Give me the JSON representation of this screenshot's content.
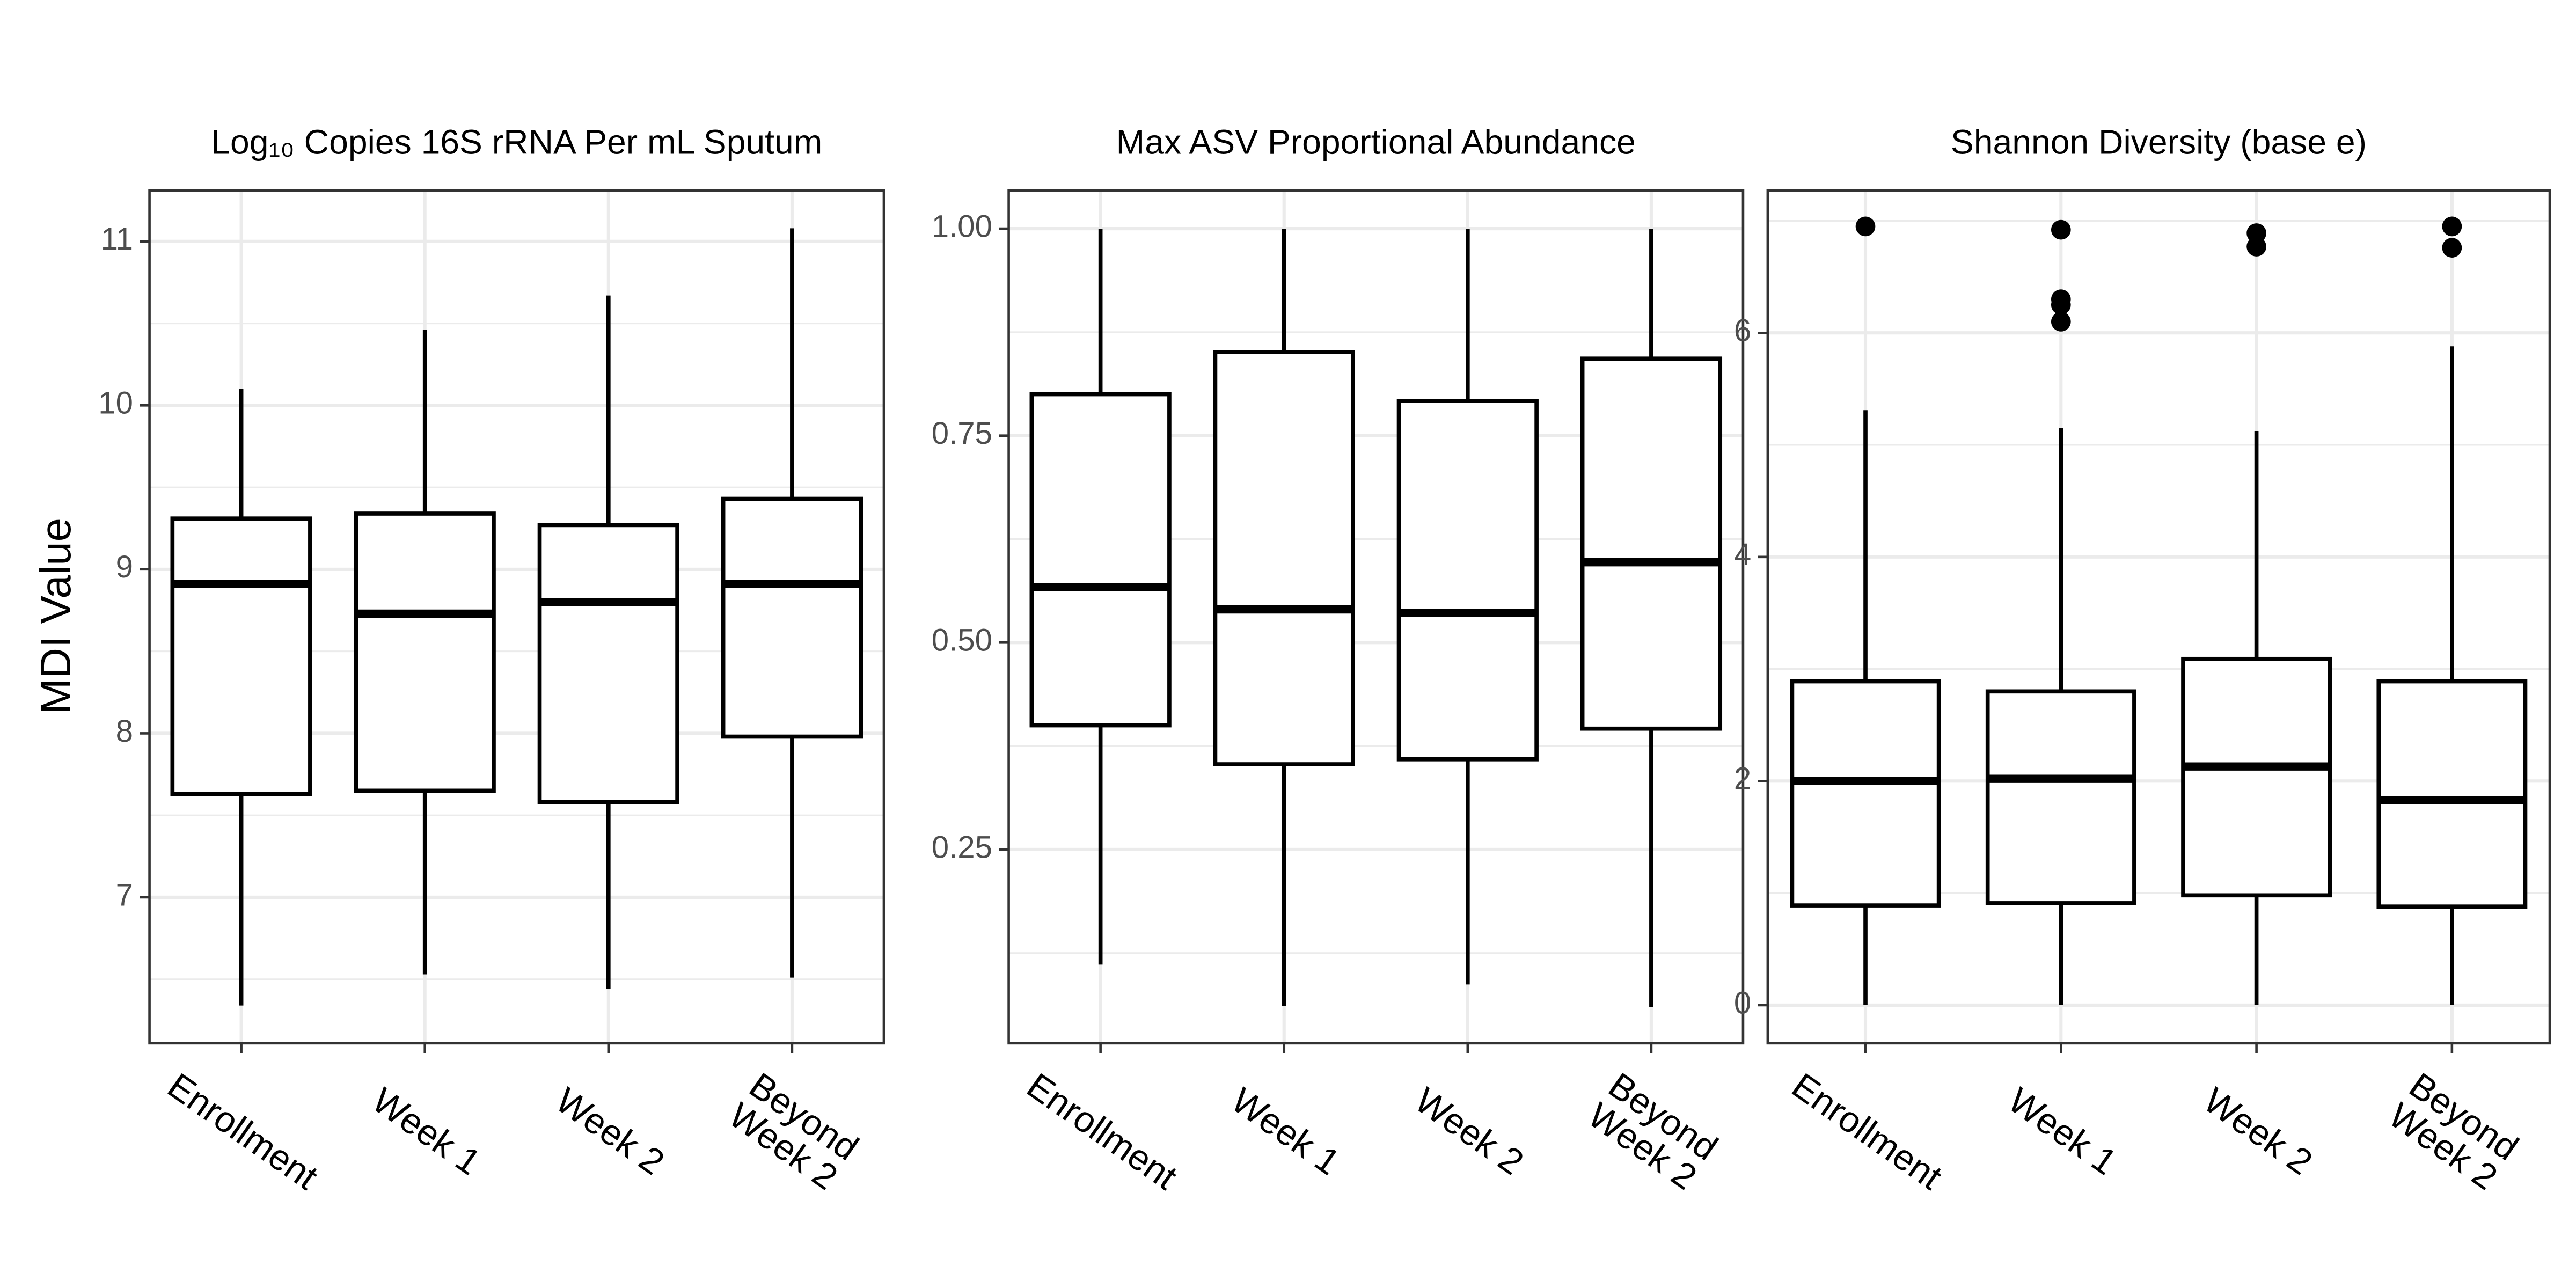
{
  "y_label": "MDI Value",
  "chart_data": [
    {
      "type": "box",
      "title": "Log₁₀ Copies 16S rRNA Per mL Sputum",
      "categories": [
        "Enrollment",
        "Week 1",
        "Week 2",
        "Beyond\nWeek 2"
      ],
      "ylim": [
        6.11,
        11.31
      ],
      "yticks": [
        7,
        8,
        9,
        10,
        11
      ],
      "grid": true,
      "boxes": [
        {
          "whisker_low": 6.34,
          "q1": 7.63,
          "median": 8.91,
          "q3": 9.31,
          "whisker_high": 10.1,
          "outliers": []
        },
        {
          "whisker_low": 6.53,
          "q1": 7.65,
          "median": 8.73,
          "q3": 9.34,
          "whisker_high": 10.46,
          "outliers": []
        },
        {
          "whisker_low": 6.44,
          "q1": 7.58,
          "median": 8.8,
          "q3": 9.27,
          "whisker_high": 10.67,
          "outliers": []
        },
        {
          "whisker_low": 6.51,
          "q1": 7.98,
          "median": 8.91,
          "q3": 9.43,
          "whisker_high": 11.08,
          "outliers": []
        }
      ]
    },
    {
      "type": "box",
      "title": "Max ASV Proportional Abundance",
      "categories": [
        "Enrollment",
        "Week 1",
        "Week 2",
        "Beyond\nWeek 2"
      ],
      "ylim": [
        0.016,
        1.046
      ],
      "yticks": [
        {
          "value": 0.25,
          "label": "0.25"
        },
        {
          "value": 0.5,
          "label": "0.50"
        },
        {
          "value": 0.75,
          "label": "0.75"
        },
        {
          "value": 1,
          "label": "1.00"
        }
      ],
      "grid": true,
      "boxes": [
        {
          "whisker_low": 0.111,
          "q1": 0.4,
          "median": 0.567,
          "q3": 0.8,
          "whisker_high": 1.0,
          "outliers": []
        },
        {
          "whisker_low": 0.061,
          "q1": 0.353,
          "median": 0.54,
          "q3": 0.851,
          "whisker_high": 1.0,
          "outliers": []
        },
        {
          "whisker_low": 0.087,
          "q1": 0.359,
          "median": 0.536,
          "q3": 0.792,
          "whisker_high": 1.0,
          "outliers": []
        },
        {
          "whisker_low": 0.06,
          "q1": 0.396,
          "median": 0.597,
          "q3": 0.843,
          "whisker_high": 1.0,
          "outliers": []
        }
      ]
    },
    {
      "type": "box",
      "title": "Shannon Diversity (base e)",
      "categories": [
        "Enrollment",
        "Week 1",
        "Week 2",
        "Beyond\nWeek 2"
      ],
      "ylim": [
        -0.34,
        7.27
      ],
      "yticks": [
        0,
        2,
        4,
        6
      ],
      "grid": true,
      "boxes": [
        {
          "whisker_low": 0,
          "q1": 0.89,
          "median": 2.0,
          "q3": 2.89,
          "whisker_high": 5.31,
          "outliers": [
            6.95
          ]
        },
        {
          "whisker_low": 0,
          "q1": 0.91,
          "median": 2.02,
          "q3": 2.8,
          "whisker_high": 5.15,
          "outliers": [
            6.92,
            6.3,
            6.25,
            6.1
          ]
        },
        {
          "whisker_low": 0,
          "q1": 0.98,
          "median": 2.13,
          "q3": 3.09,
          "whisker_high": 5.12,
          "outliers": [
            6.89,
            6.77
          ]
        },
        {
          "whisker_low": 0,
          "q1": 0.88,
          "median": 1.83,
          "q3": 2.89,
          "whisker_high": 5.88,
          "outliers": [
            6.95,
            6.76
          ]
        }
      ]
    }
  ]
}
